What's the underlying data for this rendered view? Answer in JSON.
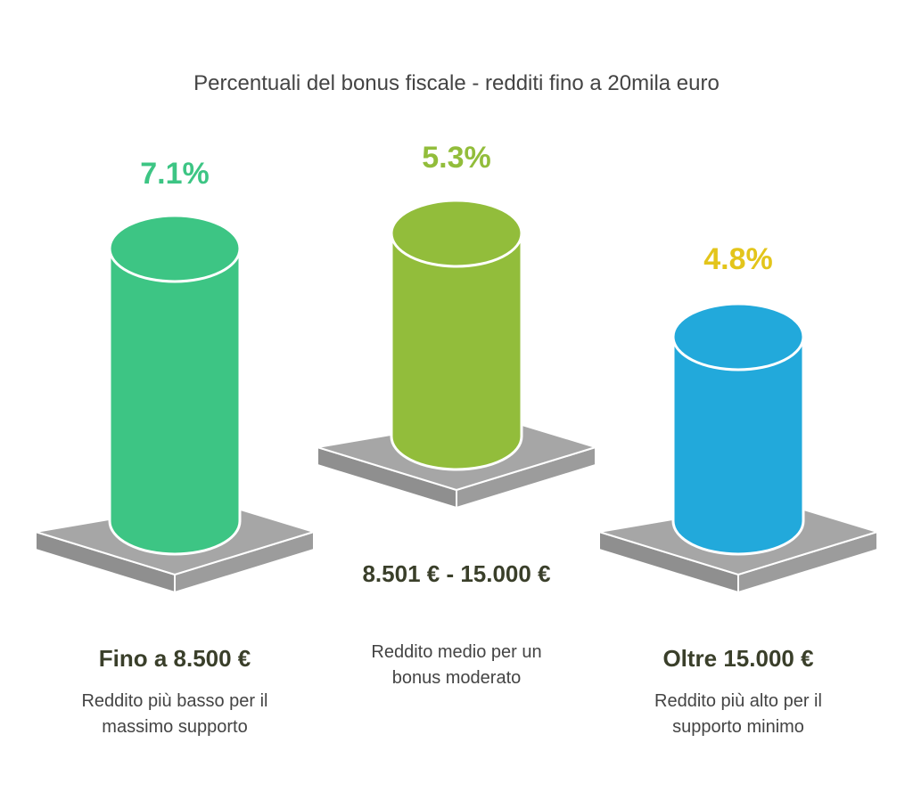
{
  "title": "Percentuali del bonus fiscale - redditi fino a 20mila euro",
  "items": [
    {
      "value": "7.1%",
      "color": "#3dc584",
      "label_color": "#3dc584",
      "heading": "Fino a 8.500 €",
      "description": "Reddito più basso per il massimo supporto"
    },
    {
      "value": "5.3%",
      "color": "#92bd3b",
      "label_color": "#92bd3b",
      "heading": "8.501 € - 15.000 €",
      "description": "Reddito medio per un bonus moderato"
    },
    {
      "value": "4.8%",
      "color": "#22a9db",
      "label_color": "#e3c51b",
      "heading": "Oltre 15.000 €",
      "description": "Reddito più alto per il supporto minimo"
    }
  ]
}
